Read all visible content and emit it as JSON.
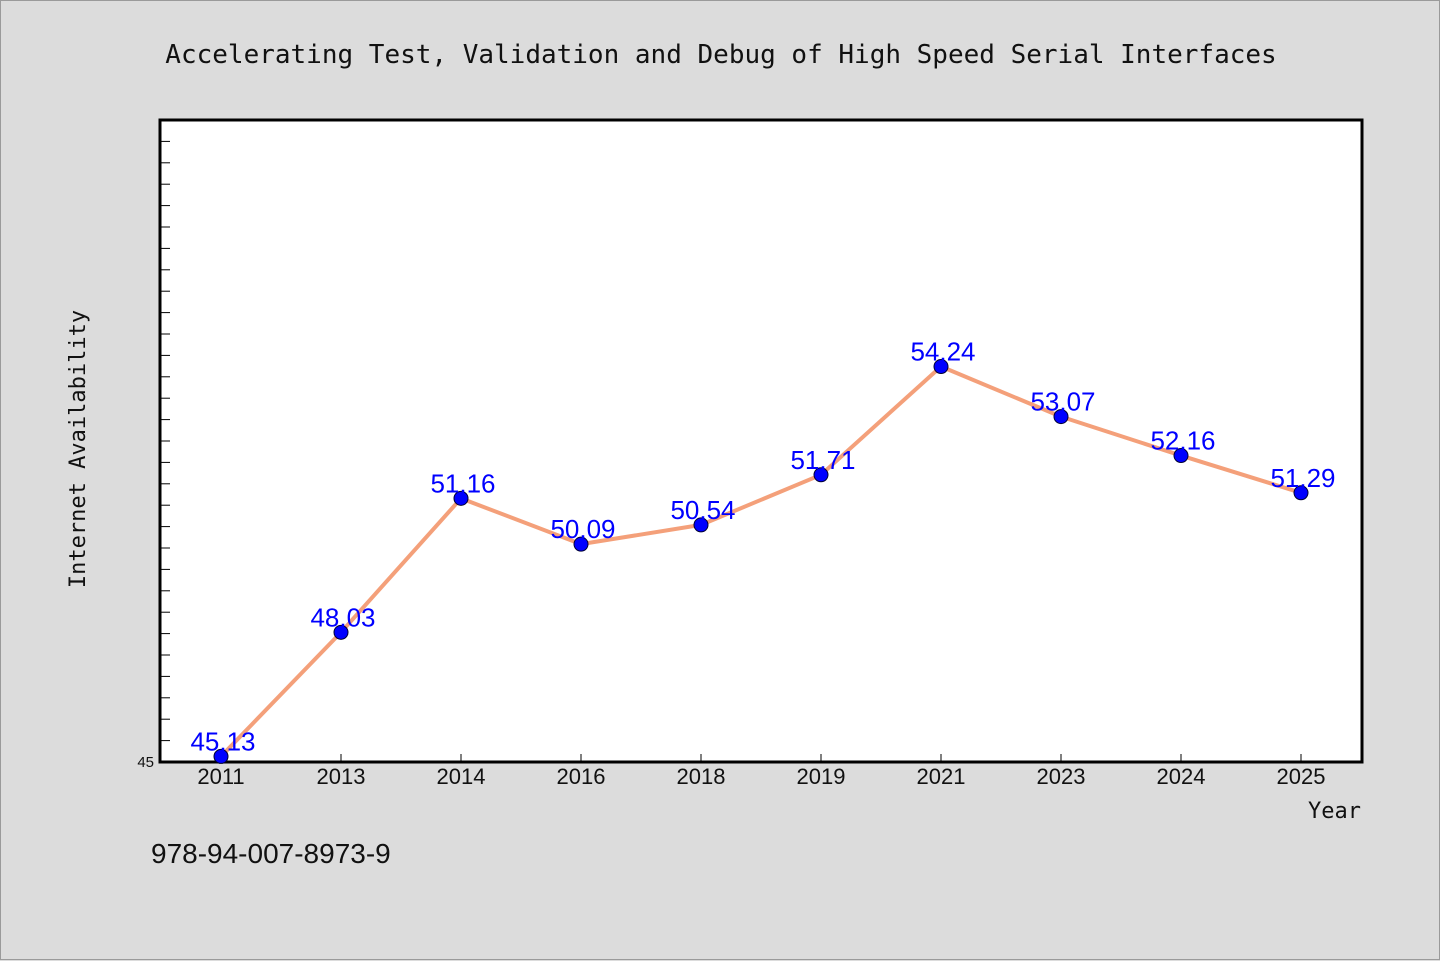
{
  "footer_text": "978-94-007-8973-9",
  "chart_data": {
    "type": "line",
    "title": "Accelerating Test, Validation and Debug of High Speed Serial Interfaces",
    "xlabel": "Year",
    "ylabel": "Internet Availability",
    "categories": [
      "2011",
      "2013",
      "2014",
      "2016",
      "2018",
      "2019",
      "2021",
      "2023",
      "2024",
      "2025"
    ],
    "values": [
      45.13,
      48.03,
      51.16,
      50.09,
      50.54,
      51.71,
      54.24,
      53.07,
      52.16,
      51.29
    ],
    "ylim": [
      45,
      60
    ],
    "y_tick_labels": [
      "45"
    ],
    "data_labels": [
      "45.13",
      "48.03",
      "51.16",
      "50.09",
      "50.54",
      "51.71",
      "54.24",
      "53.07",
      "52.16",
      "51.29"
    ],
    "line_color": "#f4a07a",
    "marker_color": "#0000ff",
    "label_color": "#0000ff",
    "grid": false
  }
}
